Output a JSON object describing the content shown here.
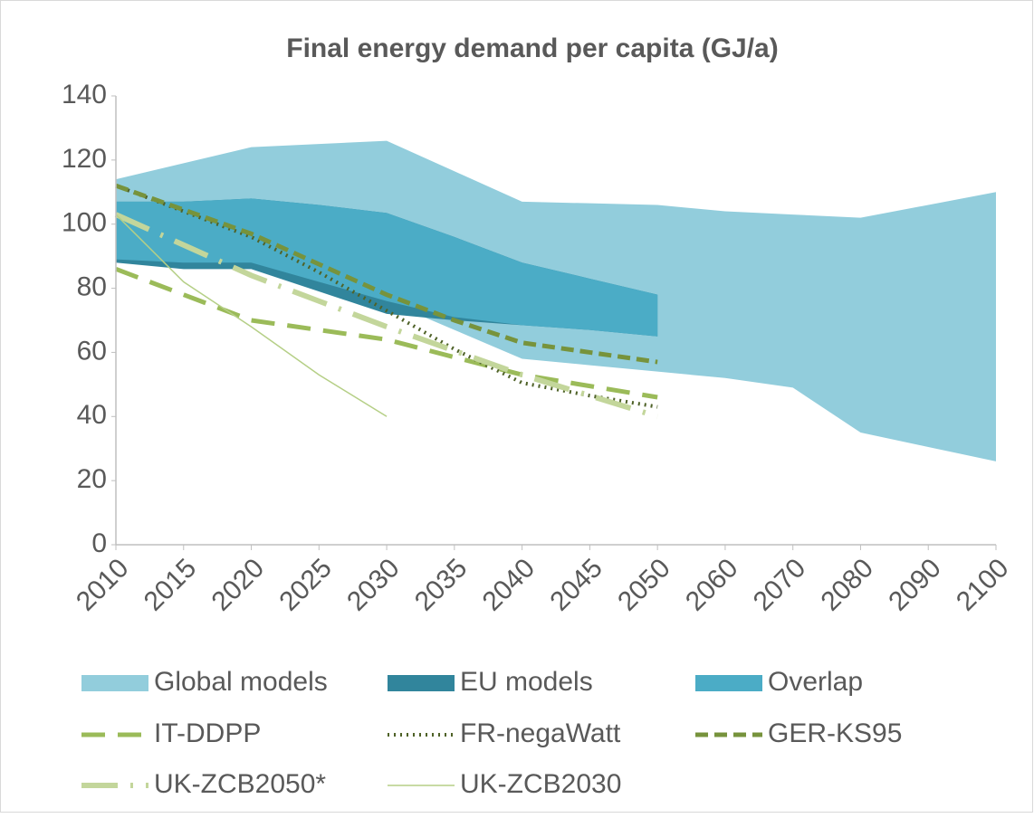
{
  "chart_data": {
    "type": "line",
    "title": "Final energy demand per capita (GJ/a)",
    "categories": [
      "2010",
      "2015",
      "2020",
      "2025",
      "2030",
      "2035",
      "2040",
      "2045",
      "2050",
      "2060",
      "2070",
      "2080",
      "2090",
      "2100"
    ],
    "ylim": [
      0,
      140
    ],
    "yticks": [
      0,
      20,
      40,
      60,
      80,
      100,
      120,
      140
    ],
    "grid": false,
    "legend": "bottom",
    "series": [
      {
        "name": "Global models",
        "kind": "band",
        "color": "#92cddc",
        "high": [
          114,
          119,
          124,
          125,
          126,
          116.5,
          107,
          106.5,
          106,
          104,
          103,
          102,
          106,
          110
        ],
        "low": [
          89,
          88,
          88,
          82,
          76,
          67,
          58,
          56,
          54,
          52,
          49,
          35,
          30.5,
          26
        ]
      },
      {
        "name": "EU models",
        "kind": "band",
        "color": "#31859c",
        "high": [
          107,
          107,
          108,
          106,
          103.5,
          96,
          88,
          83,
          78,
          null,
          null,
          null,
          null,
          null
        ],
        "low": [
          88,
          86,
          86,
          79,
          72,
          70,
          68.5,
          67,
          65,
          null,
          null,
          null,
          null,
          null
        ]
      },
      {
        "name": "Overlap",
        "kind": "band",
        "color": "#4bacc6",
        "high": [
          107,
          107,
          108,
          106,
          103.5,
          96,
          88,
          83,
          78,
          null,
          null,
          null,
          null,
          null
        ],
        "low": [
          89,
          88,
          88,
          82,
          76,
          71,
          68.5,
          67,
          65,
          null,
          null,
          null,
          null,
          null
        ]
      },
      {
        "name": "IT-DDPP",
        "kind": "line",
        "style": "long-dash",
        "color": "#9bbb59",
        "values": [
          86,
          78,
          70,
          67,
          64,
          58.5,
          53,
          49.5,
          46,
          null,
          null,
          null,
          null,
          null
        ]
      },
      {
        "name": "FR-negaWatt",
        "kind": "line",
        "style": "dot",
        "color": "#4f6228",
        "values": [
          112,
          104,
          96,
          85,
          73,
          61,
          50.5,
          46.5,
          43,
          null,
          null,
          null,
          null,
          null
        ]
      },
      {
        "name": "GER-KS95",
        "kind": "line",
        "style": "dash",
        "color": "#77933c",
        "values": [
          112,
          104.5,
          97,
          87.5,
          78,
          70,
          63,
          60,
          57,
          null,
          null,
          null,
          null,
          null
        ]
      },
      {
        "name": "UK-ZCB2050*",
        "kind": "line",
        "style": "long-dash-dot",
        "color": "#c3d69b",
        "values": [
          103,
          93.5,
          84,
          76,
          68,
          60.5,
          53,
          46.5,
          40,
          null,
          null,
          null,
          null,
          null
        ]
      },
      {
        "name": "UK-ZCB2030",
        "kind": "line",
        "style": "thin-solid",
        "color": "#b5cf86",
        "values": [
          103,
          82,
          68,
          53,
          40,
          null,
          null,
          null,
          null,
          null,
          null,
          null,
          null,
          null
        ]
      }
    ]
  }
}
